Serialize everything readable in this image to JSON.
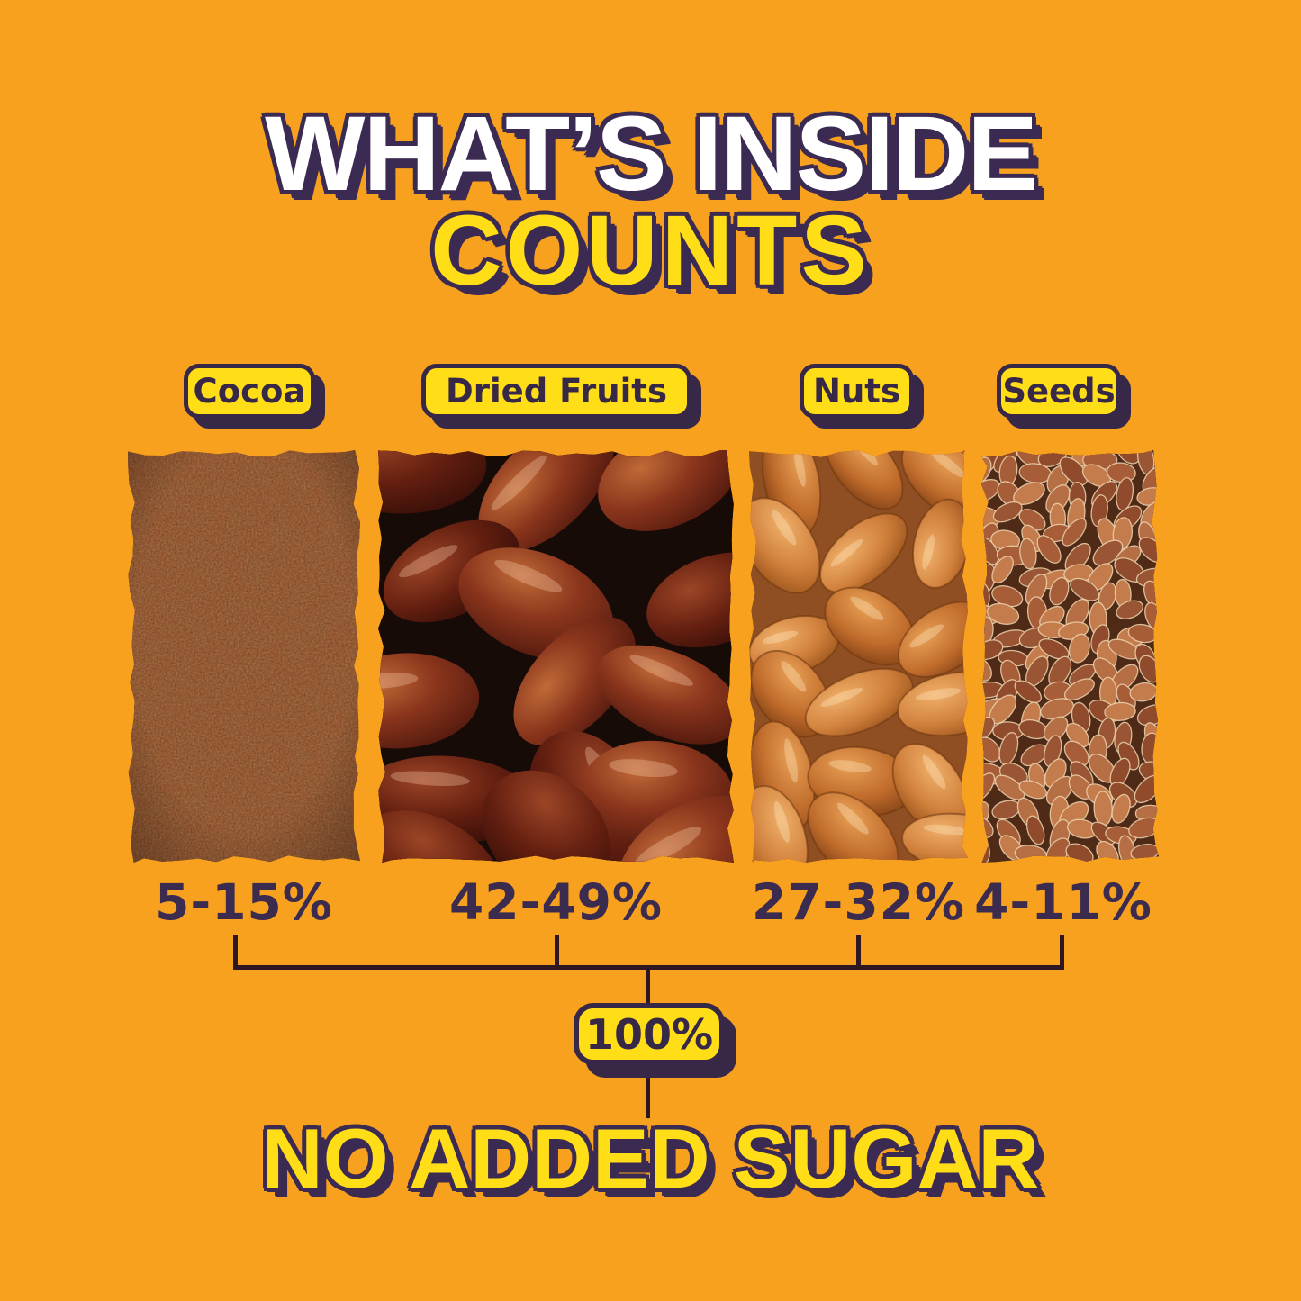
{
  "colors": {
    "background": "#F8A11E",
    "accent_yellow": "#FFDD17",
    "accent_purple": "#3B2A52",
    "line": "#2E1720"
  },
  "title": {
    "line1": "WHAT’S INSIDE",
    "line2": "COUNTS"
  },
  "ingredients": [
    {
      "label": "Cocoa",
      "percent": "5-15%",
      "photo": "cocoa-powder-photo"
    },
    {
      "label": "Dried Fruits",
      "percent": "42-49%",
      "photo": "dates-photo"
    },
    {
      "label": "Nuts",
      "percent": "27-32%",
      "photo": "almonds-photo"
    },
    {
      "label": "Seeds",
      "percent": "4-11%",
      "photo": "flax-seeds-photo"
    }
  ],
  "total": {
    "badge": "100%",
    "caption": "NO ADDED SUGAR"
  }
}
